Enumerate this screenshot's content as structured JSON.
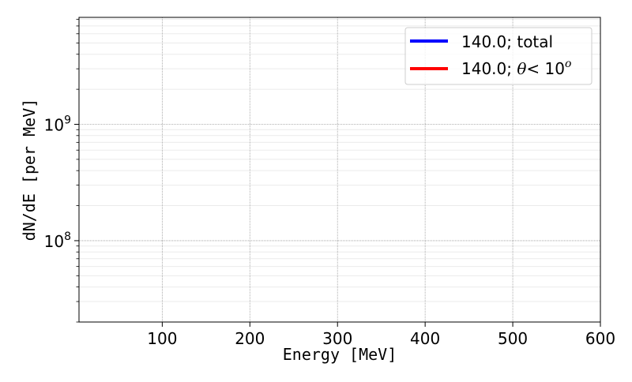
{
  "chart_data": {
    "type": "line",
    "title": "",
    "xlabel": "Energy [MeV]",
    "ylabel": "dN/dE [per MeV]",
    "xlim": [
      5,
      600
    ],
    "ylim": [
      20000000.0,
      8300000000.0
    ],
    "yscale": "log",
    "grid": true,
    "x_ticks": [
      100,
      200,
      300,
      400,
      500,
      600
    ],
    "x_tick_labels": [
      "100",
      "200",
      "300",
      "400",
      "500",
      "600"
    ],
    "y_ticks": [
      100000000.0,
      1000000000.0
    ],
    "y_tick_labels": [
      {
        "base": "10",
        "exp": "8"
      },
      {
        "base": "10",
        "exp": "9"
      }
    ],
    "legend_placement": "top-right",
    "legend": [
      {
        "label": "140.0; total",
        "color": "#0000ff"
      },
      {
        "label_prefix": "140.0; ",
        "label_theta": "θ",
        "label_rest": "< 10",
        "label_sup": "o",
        "color": "#ff0000"
      }
    ],
    "series": []
  }
}
